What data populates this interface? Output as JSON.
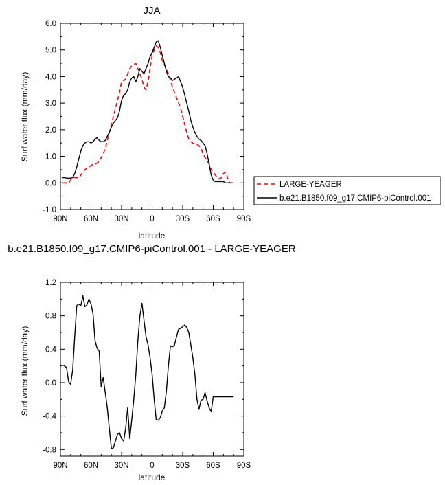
{
  "chart_data": [
    {
      "type": "line",
      "title": "JJA",
      "xlabel": "latitude",
      "ylabel": "Surf water flux (mm/day)",
      "xlim": [
        90,
        -90
      ],
      "ylim": [
        -1.0,
        6.0
      ],
      "x_ticks": [
        90,
        60,
        30,
        0,
        -30,
        -60,
        -90
      ],
      "x_tick_labels": [
        "90N",
        "60N",
        "30N",
        "0",
        "30S",
        "60S",
        "90S"
      ],
      "y_ticks": [
        -1.0,
        0.0,
        1.0,
        2.0,
        3.0,
        4.0,
        5.0,
        6.0
      ],
      "y_tick_labels": [
        "-1.0",
        "0.0",
        "1.0",
        "2.0",
        "3.0",
        "4.0",
        "5.0",
        "6.0"
      ],
      "legend_position": "right",
      "series": [
        {
          "name": "LARGE-YEAGER",
          "color": "#ff0000",
          "style": "dashed",
          "x": [
            88,
            86,
            84,
            82,
            80,
            78,
            76,
            74,
            72,
            70,
            68,
            66,
            64,
            62,
            60,
            58,
            56,
            54,
            52,
            50,
            48,
            46,
            44,
            42,
            40,
            38,
            36,
            34,
            32,
            30,
            28,
            26,
            24,
            22,
            20,
            18,
            16,
            14,
            12,
            10,
            8,
            6,
            4,
            2,
            0,
            -2,
            -4,
            -6,
            -8,
            -10,
            -12,
            -14,
            -16,
            -18,
            -20,
            -22,
            -24,
            -26,
            -28,
            -30,
            -32,
            -34,
            -36,
            -38,
            -40,
            -42,
            -44,
            -46,
            -48,
            -50,
            -52,
            -54,
            -56,
            -58,
            -60,
            -62,
            -64,
            -66,
            -68,
            -70,
            -72,
            -74,
            -76,
            -78,
            -80
          ],
          "y": [
            0.0,
            0.0,
            0.0,
            0.0,
            0.1,
            0.2,
            0.2,
            0.2,
            0.2,
            0.3,
            0.4,
            0.5,
            0.55,
            0.6,
            0.65,
            0.7,
            0.7,
            0.75,
            0.8,
            0.95,
            1.1,
            1.3,
            1.6,
            1.9,
            2.2,
            2.5,
            2.8,
            3.1,
            3.4,
            3.8,
            3.85,
            3.9,
            4.1,
            4.3,
            4.4,
            4.45,
            4.5,
            4.3,
            4.1,
            3.9,
            3.6,
            3.5,
            3.8,
            4.3,
            4.8,
            5.0,
            5.15,
            5.1,
            4.9,
            4.6,
            4.45,
            4.3,
            4.1,
            3.85,
            3.6,
            3.4,
            3.2,
            3.0,
            2.8,
            2.5,
            2.2,
            1.9,
            1.65,
            1.55,
            1.5,
            1.45,
            1.45,
            1.4,
            1.3,
            1.1,
            0.95,
            0.85,
            0.7,
            0.5,
            0.4,
            0.3,
            0.2,
            0.15,
            0.2,
            0.35,
            0.4,
            0.2,
            0.0,
            0.0,
            0.0
          ]
        },
        {
          "name": "b.e21.B1850.f09_g17.CMIP6-piControl.001",
          "color": "#000000",
          "style": "solid",
          "x": [
            88,
            86,
            84,
            82,
            80,
            78,
            76,
            74,
            72,
            70,
            68,
            66,
            64,
            62,
            60,
            58,
            56,
            54,
            52,
            50,
            48,
            46,
            44,
            42,
            40,
            38,
            36,
            34,
            32,
            30,
            28,
            26,
            24,
            22,
            20,
            18,
            16,
            14,
            12,
            10,
            8,
            6,
            4,
            2,
            0,
            -2,
            -4,
            -6,
            -8,
            -10,
            -12,
            -14,
            -16,
            -18,
            -20,
            -22,
            -24,
            -26,
            -28,
            -30,
            -32,
            -34,
            -36,
            -38,
            -40,
            -42,
            -44,
            -46,
            -48,
            -50,
            -52,
            -54,
            -56,
            -58,
            -60,
            -62,
            -64,
            -66,
            -68,
            -70,
            -72,
            -74,
            -76,
            -78,
            -80
          ],
          "y": [
            0.2,
            0.2,
            0.18,
            0.18,
            0.18,
            0.2,
            0.35,
            0.6,
            0.9,
            1.2,
            1.4,
            1.5,
            1.55,
            1.55,
            1.5,
            1.55,
            1.65,
            1.7,
            1.6,
            1.55,
            1.55,
            1.6,
            1.75,
            1.9,
            2.1,
            2.25,
            2.35,
            2.45,
            2.7,
            3.1,
            3.3,
            3.35,
            3.5,
            3.8,
            3.95,
            4.0,
            3.8,
            4.0,
            4.3,
            4.2,
            4.1,
            4.3,
            4.5,
            4.75,
            4.9,
            5.1,
            5.3,
            5.35,
            5.1,
            4.8,
            4.5,
            4.2,
            4.0,
            3.95,
            3.85,
            3.9,
            3.95,
            4.0,
            3.8,
            3.6,
            3.3,
            3.0,
            2.7,
            2.35,
            2.1,
            1.9,
            1.75,
            1.65,
            1.6,
            1.5,
            1.4,
            1.1,
            0.7,
            0.3,
            0.1,
            0.05,
            0.05,
            0.05,
            0.05,
            0.05,
            0.0,
            0.0,
            0.0,
            0.0,
            0.0
          ]
        }
      ]
    },
    {
      "type": "line",
      "title": "b.e21.B1850.f09_g17.CMIP6-piControl.001 - LARGE-YEAGER",
      "xlabel": "latitude",
      "ylabel": "Surf water flux (mm/day)",
      "xlim": [
        90,
        -90
      ],
      "ylim": [
        -0.88,
        1.2
      ],
      "x_ticks": [
        90,
        60,
        30,
        0,
        -30,
        -60,
        -90
      ],
      "x_tick_labels": [
        "90N",
        "60N",
        "30N",
        "0",
        "30S",
        "60S",
        "90S"
      ],
      "y_ticks": [
        -0.8,
        -0.4,
        0.0,
        0.4,
        0.8,
        1.2
      ],
      "y_tick_labels": [
        "-0.8",
        "-0.4",
        "0.0",
        "0.4",
        "0.8",
        "1.2"
      ],
      "series": [
        {
          "color": "#000000",
          "style": "solid",
          "x": [
            88,
            86,
            84,
            82,
            80,
            78,
            76,
            74,
            72,
            70,
            68,
            66,
            64,
            62,
            60,
            58,
            56,
            54,
            52,
            50,
            48,
            46,
            44,
            42,
            40,
            38,
            36,
            34,
            32,
            30,
            28,
            26,
            24,
            22,
            20,
            18,
            16,
            14,
            12,
            10,
            8,
            6,
            4,
            2,
            0,
            -2,
            -4,
            -6,
            -8,
            -10,
            -12,
            -14,
            -16,
            -18,
            -20,
            -22,
            -24,
            -26,
            -28,
            -30,
            -32,
            -34,
            -36,
            -38,
            -40,
            -42,
            -44,
            -46,
            -48,
            -50,
            -52,
            -54,
            -56,
            -58,
            -60,
            -62,
            -64,
            -66,
            -68,
            -70,
            -72,
            -74,
            -76,
            -78,
            -80
          ],
          "y": [
            0.21,
            0.2,
            0.18,
            0.01,
            -0.02,
            0.15,
            0.55,
            0.92,
            0.94,
            0.92,
            1.04,
            0.91,
            0.93,
            1.0,
            0.94,
            0.82,
            0.5,
            0.41,
            0.38,
            -0.05,
            0.06,
            -0.12,
            -0.3,
            -0.55,
            -0.79,
            -0.78,
            -0.7,
            -0.62,
            -0.6,
            -0.67,
            -0.7,
            -0.55,
            -0.3,
            -0.67,
            -0.45,
            -0.2,
            0.1,
            0.5,
            0.8,
            0.95,
            0.75,
            0.55,
            0.45,
            0.3,
            0.1,
            -0.2,
            -0.44,
            -0.45,
            -0.42,
            -0.34,
            -0.3,
            -0.1,
            0.2,
            0.44,
            0.43,
            0.45,
            0.55,
            0.64,
            0.65,
            0.67,
            0.69,
            0.66,
            0.6,
            0.45,
            0.3,
            0.1,
            -0.2,
            -0.32,
            -0.21,
            -0.2,
            -0.12,
            -0.22,
            -0.3,
            -0.35,
            -0.17,
            -0.17,
            -0.17,
            -0.17,
            -0.17,
            -0.17,
            -0.17,
            -0.17,
            -0.17,
            -0.17,
            -0.17
          ]
        }
      ]
    }
  ]
}
